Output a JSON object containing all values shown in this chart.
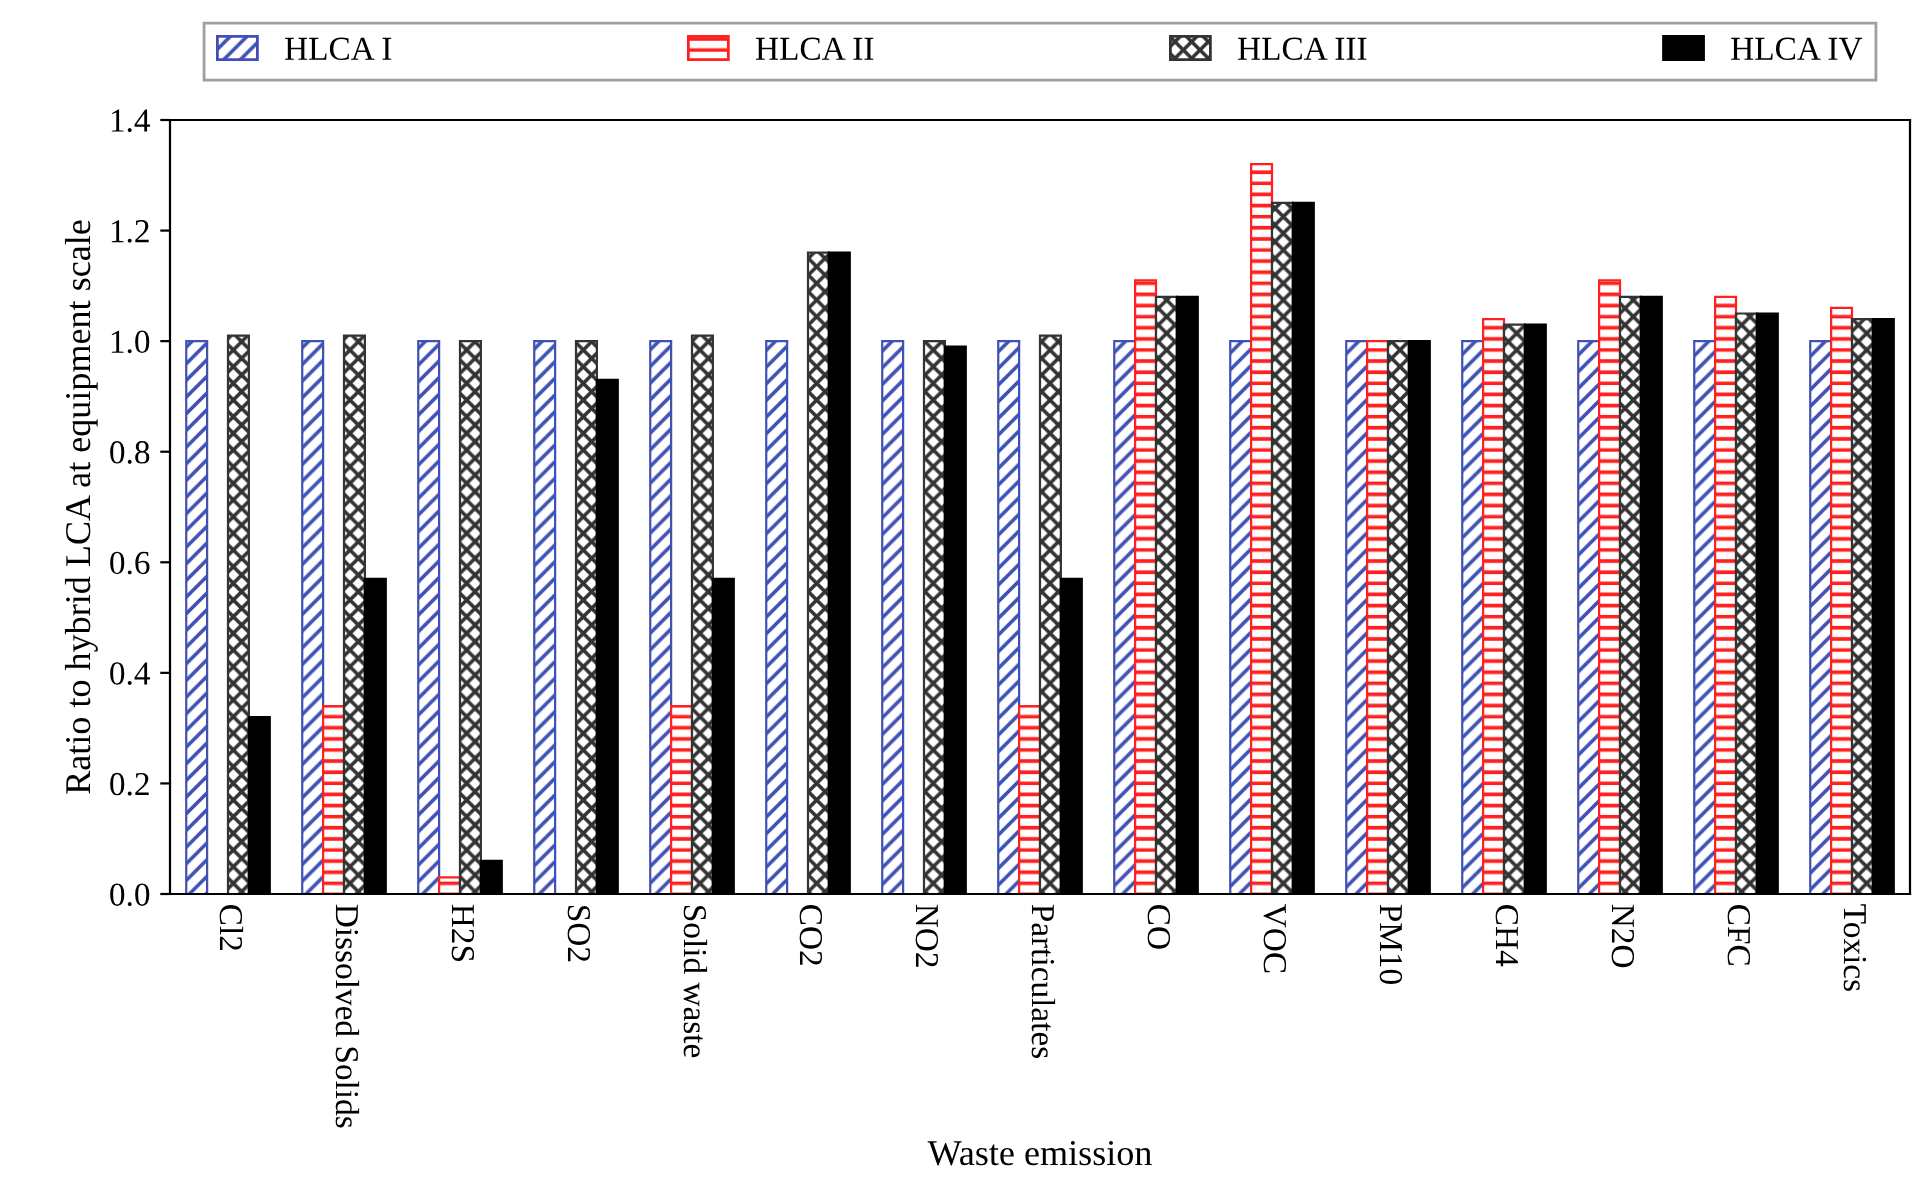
{
  "chart_data": {
    "type": "bar",
    "xlabel": "Waste emission",
    "ylabel": "Ratio to hybrid LCA at equipment scale",
    "categories": [
      "Cl2",
      "Dissolved Solids",
      "H2S",
      "SO2",
      "Solid waste",
      "CO2",
      "NO2",
      "Particulates",
      "CO",
      "VOC",
      "PM10",
      "CH4",
      "N2O",
      "CFC",
      "Toxics"
    ],
    "series": [
      {
        "name": "HLCA I",
        "color": "#3f51b5",
        "values": [
          1.0,
          1.0,
          1.0,
          1.0,
          1.0,
          1.0,
          1.0,
          1.0,
          1.0,
          1.0,
          1.0,
          1.0,
          1.0,
          1.0,
          1.0
        ]
      },
      {
        "name": "HLCA II",
        "color": "#ff2020",
        "values": [
          null,
          0.34,
          0.03,
          null,
          0.34,
          null,
          null,
          0.34,
          1.11,
          1.32,
          1.0,
          1.04,
          1.11,
          1.08,
          1.06
        ]
      },
      {
        "name": "HLCA III",
        "color": "#333333",
        "values": [
          1.01,
          1.01,
          1.0,
          1.0,
          1.01,
          1.16,
          1.0,
          1.01,
          1.08,
          1.25,
          1.0,
          1.03,
          1.08,
          1.05,
          1.04
        ]
      },
      {
        "name": "HLCA IV",
        "color": "#000000",
        "values": [
          0.32,
          0.57,
          0.06,
          0.93,
          0.57,
          1.16,
          0.99,
          0.57,
          1.08,
          1.25,
          1.0,
          1.03,
          1.08,
          1.05,
          1.04
        ]
      }
    ],
    "ylim": [
      0,
      1.4
    ],
    "yticks": [
      {
        "value": 0,
        "label": "0.0"
      },
      0.2,
      0.4,
      0.6,
      0.8,
      {
        "value": 1,
        "label": "1.0"
      },
      1.2,
      1.4
    ],
    "grid": false,
    "legend": "top"
  }
}
